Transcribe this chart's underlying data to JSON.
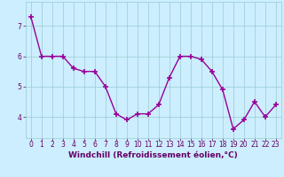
{
  "x": [
    0,
    1,
    2,
    3,
    4,
    5,
    6,
    7,
    8,
    9,
    10,
    11,
    12,
    13,
    14,
    15,
    16,
    17,
    18,
    19,
    20,
    21,
    22,
    23
  ],
  "y": [
    7.3,
    6.0,
    6.0,
    6.0,
    5.6,
    5.5,
    5.5,
    5.0,
    4.1,
    3.9,
    4.1,
    4.1,
    4.4,
    5.3,
    6.0,
    6.0,
    5.9,
    5.5,
    4.9,
    3.6,
    3.9,
    4.5,
    4.0,
    4.4
  ],
  "line_color": "#990099",
  "marker": "+",
  "markersize": 4,
  "markeredgewidth": 1.2,
  "linewidth": 1.0,
  "background_color": "#cceeff",
  "grid_color": "#99cccc",
  "xlabel": "Windchill (Refroidissement éolien,°C)",
  "xlabel_fontsize": 6.5,
  "xlabel_color": "#660066",
  "tick_color": "#660066",
  "tick_fontsize": 5.5,
  "ylim": [
    3.3,
    7.8
  ],
  "xlim": [
    -0.5,
    23.5
  ],
  "yticks": [
    4,
    5,
    6,
    7
  ],
  "xticks": [
    0,
    1,
    2,
    3,
    4,
    5,
    6,
    7,
    8,
    9,
    10,
    11,
    12,
    13,
    14,
    15,
    16,
    17,
    18,
    19,
    20,
    21,
    22,
    23
  ]
}
